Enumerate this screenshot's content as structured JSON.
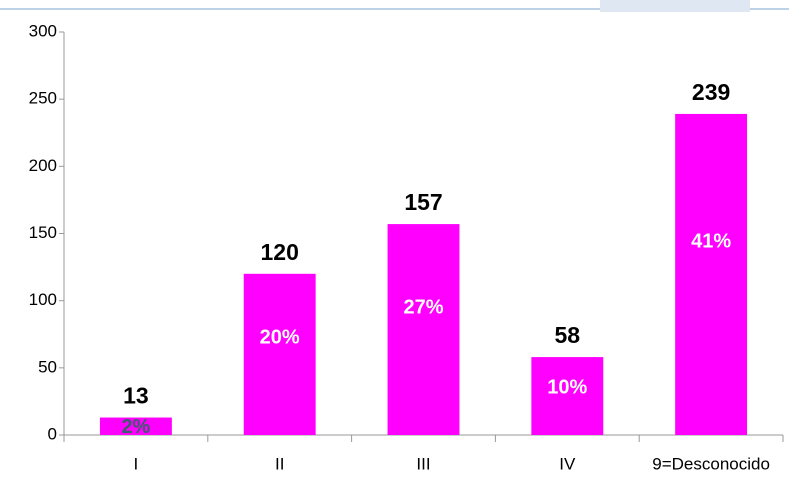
{
  "chart_data": {
    "type": "bar",
    "categories": [
      "I",
      "II",
      "III",
      "IV",
      "9=Desconocido"
    ],
    "values": [
      13,
      120,
      157,
      58,
      239
    ],
    "percent_labels": [
      "2%",
      "20%",
      "27%",
      "10%",
      "41%"
    ],
    "color": "#ff00ff",
    "ylim": [
      0,
      300
    ],
    "yticks": [
      0,
      50,
      100,
      150,
      200,
      250,
      300
    ],
    "grid": false
  }
}
